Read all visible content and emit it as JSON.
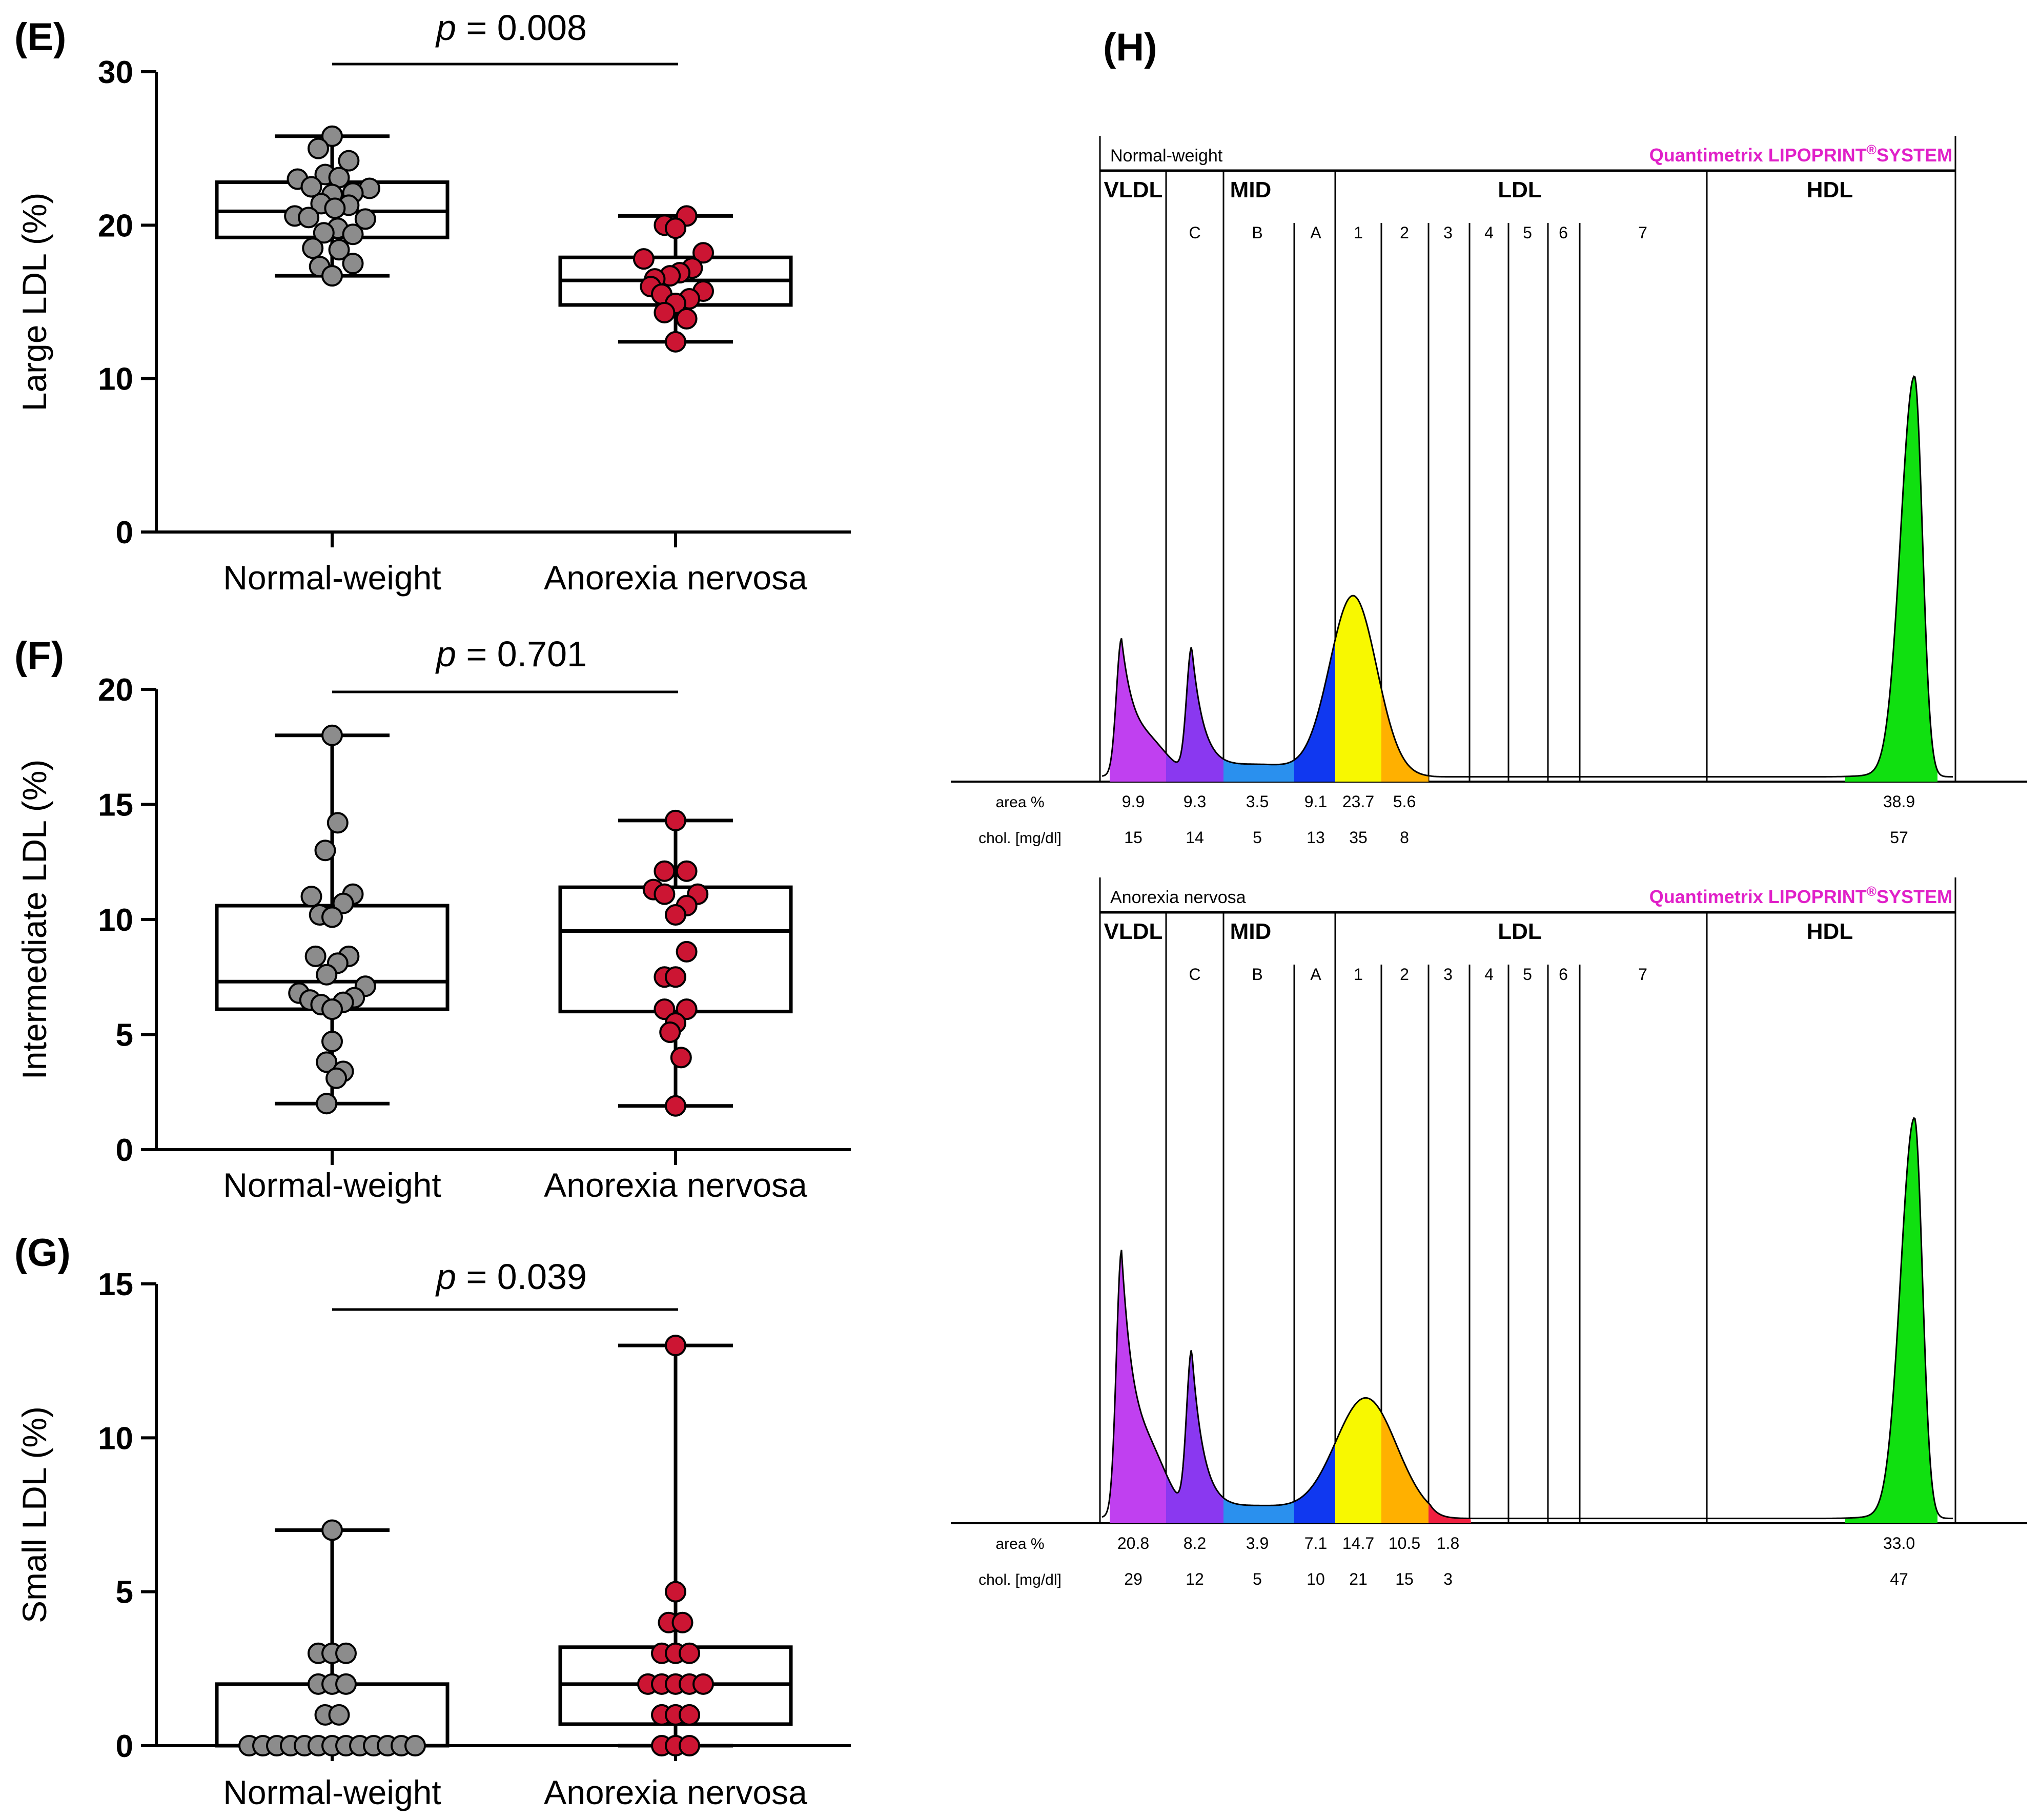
{
  "colors": {
    "normal_fill": "#8c8c8c",
    "anorexia_fill": "#cc1533",
    "axis": "#000000",
    "quantimetrix": "#e020c8",
    "vldl": "#c040f0",
    "mid_c": "#8a38f0",
    "mid_b": "#2a90ee",
    "mid_a": "#1038f0",
    "ldl1": "#f8f800",
    "ldl2": "#ffb000",
    "ldl3": "#f02040",
    "hdl": "#10e010"
  },
  "chart_data": [
    {
      "type": "box",
      "panel_label": "(E)",
      "ylabel": "Large LDL (%)",
      "ylim": [
        0,
        30
      ],
      "yticks": [
        "0",
        "10",
        "20",
        "30"
      ],
      "categories": [
        "Normal-weight",
        "Anorexia nervosa"
      ],
      "pvalue": {
        "label": "p",
        "text": " = 0.008"
      },
      "groups": [
        {
          "name": "Normal-weight",
          "whisker_low": 16.7,
          "q1": 19.2,
          "median": 20.9,
          "q3": 22.8,
          "whisker_high": 25.8,
          "points": [
            {
              "v": 25.8,
              "j": 0
            },
            {
              "v": 25.0,
              "j": -1
            },
            {
              "v": 24.2,
              "j": 1.2
            },
            {
              "v": 23.3,
              "j": -0.5
            },
            {
              "v": 23.1,
              "j": 0.5
            },
            {
              "v": 23.0,
              "j": -2.5
            },
            {
              "v": 22.5,
              "j": -1.5
            },
            {
              "v": 22.4,
              "j": 2.7
            },
            {
              "v": 22.1,
              "j": 1.5
            },
            {
              "v": 22.0,
              "j": 0
            },
            {
              "v": 21.4,
              "j": -0.8
            },
            {
              "v": 21.3,
              "j": 1.2
            },
            {
              "v": 21.1,
              "j": 0.2
            },
            {
              "v": 20.6,
              "j": -2.7
            },
            {
              "v": 20.5,
              "j": -1.7
            },
            {
              "v": 20.4,
              "j": 2.4
            },
            {
              "v": 19.8,
              "j": 0.4
            },
            {
              "v": 19.5,
              "j": -0.6
            },
            {
              "v": 19.4,
              "j": 1.5
            },
            {
              "v": 18.5,
              "j": -1.4
            },
            {
              "v": 18.4,
              "j": 0.5
            },
            {
              "v": 17.5,
              "j": 1.5
            },
            {
              "v": 17.3,
              "j": -0.9
            },
            {
              "v": 16.7,
              "j": 0
            }
          ]
        },
        {
          "name": "Anorexia nervosa",
          "whisker_low": 12.4,
          "q1": 14.8,
          "median": 16.4,
          "q3": 17.9,
          "whisker_high": 20.6,
          "points": [
            {
              "v": 20.6,
              "j": 0.8
            },
            {
              "v": 20.0,
              "j": -0.8
            },
            {
              "v": 19.8,
              "j": 0
            },
            {
              "v": 18.2,
              "j": 2.0
            },
            {
              "v": 17.8,
              "j": -2.3
            },
            {
              "v": 17.2,
              "j": 1.2
            },
            {
              "v": 16.9,
              "j": 0.3
            },
            {
              "v": 16.7,
              "j": -0.4
            },
            {
              "v": 16.5,
              "j": -1.5
            },
            {
              "v": 16.0,
              "j": -1.8
            },
            {
              "v": 15.7,
              "j": 2.0
            },
            {
              "v": 15.5,
              "j": -1.0
            },
            {
              "v": 15.2,
              "j": 1.0
            },
            {
              "v": 14.9,
              "j": 0
            },
            {
              "v": 14.3,
              "j": -0.8
            },
            {
              "v": 13.9,
              "j": 0.8
            },
            {
              "v": 12.4,
              "j": 0
            }
          ]
        }
      ]
    },
    {
      "type": "box",
      "panel_label": "(F)",
      "ylabel": "Intermediate LDL (%)",
      "ylim": [
        0,
        20
      ],
      "yticks": [
        "0",
        "5",
        "10",
        "15",
        "20"
      ],
      "categories": [
        "Normal-weight",
        "Anorexia nervosa"
      ],
      "pvalue": {
        "label": "p",
        "text": " = 0.701"
      },
      "groups": [
        {
          "name": "Normal-weight",
          "whisker_low": 2.0,
          "q1": 6.1,
          "median": 7.3,
          "q3": 10.6,
          "whisker_high": 18.0,
          "points": [
            {
              "v": 18.0,
              "j": 0
            },
            {
              "v": 14.2,
              "j": 0.4
            },
            {
              "v": 13.0,
              "j": -0.5
            },
            {
              "v": 11.1,
              "j": 1.5
            },
            {
              "v": 11.0,
              "j": -1.5
            },
            {
              "v": 10.7,
              "j": 0.8
            },
            {
              "v": 10.2,
              "j": -0.9
            },
            {
              "v": 10.1,
              "j": 0
            },
            {
              "v": 8.4,
              "j": 1.2
            },
            {
              "v": 8.4,
              "j": -1.2
            },
            {
              "v": 8.1,
              "j": 0.4
            },
            {
              "v": 7.6,
              "j": -0.4
            },
            {
              "v": 7.1,
              "j": 2.4
            },
            {
              "v": 6.8,
              "j": -2.4
            },
            {
              "v": 6.6,
              "j": 1.6
            },
            {
              "v": 6.5,
              "j": -1.6
            },
            {
              "v": 6.4,
              "j": 0.8
            },
            {
              "v": 6.3,
              "j": -0.8
            },
            {
              "v": 6.1,
              "j": 0
            },
            {
              "v": 4.7,
              "j": 0
            },
            {
              "v": 3.8,
              "j": -0.4
            },
            {
              "v": 3.4,
              "j": 0.8
            },
            {
              "v": 3.1,
              "j": 0.3
            },
            {
              "v": 2.0,
              "j": -0.4
            }
          ]
        },
        {
          "name": "Anorexia nervosa",
          "whisker_low": 1.9,
          "q1": 6.0,
          "median": 9.5,
          "q3": 11.4,
          "whisker_high": 14.3,
          "points": [
            {
              "v": 14.3,
              "j": 0
            },
            {
              "v": 12.1,
              "j": -0.8
            },
            {
              "v": 12.1,
              "j": 0.8
            },
            {
              "v": 11.3,
              "j": -1.6
            },
            {
              "v": 11.1,
              "j": 1.6
            },
            {
              "v": 11.1,
              "j": -0.8
            },
            {
              "v": 10.6,
              "j": 0.8
            },
            {
              "v": 10.2,
              "j": 0
            },
            {
              "v": 8.6,
              "j": 0.8
            },
            {
              "v": 7.5,
              "j": -0.8
            },
            {
              "v": 7.5,
              "j": 0
            },
            {
              "v": 6.1,
              "j": -0.8
            },
            {
              "v": 6.1,
              "j": 0.8
            },
            {
              "v": 5.5,
              "j": 0
            },
            {
              "v": 5.1,
              "j": -0.4
            },
            {
              "v": 4.0,
              "j": 0.4
            },
            {
              "v": 1.9,
              "j": 0
            }
          ]
        }
      ]
    },
    {
      "type": "box",
      "panel_label": "(G)",
      "ylabel": "Small LDL (%)",
      "ylim": [
        0,
        15
      ],
      "yticks": [
        "0",
        "5",
        "10",
        "15"
      ],
      "categories": [
        "Normal-weight",
        "Anorexia nervosa"
      ],
      "pvalue": {
        "label": "p",
        "text": " = 0.039"
      },
      "groups": [
        {
          "name": "Normal-weight",
          "whisker_low": 0,
          "q1": 0,
          "median": 0,
          "q3": 2.0,
          "whisker_high": 7.0,
          "points": [
            {
              "v": 7,
              "j": 0
            },
            {
              "v": 3,
              "j": -1
            },
            {
              "v": 3,
              "j": 0
            },
            {
              "v": 3,
              "j": 1
            },
            {
              "v": 2,
              "j": -1
            },
            {
              "v": 2,
              "j": 0
            },
            {
              "v": 2,
              "j": 1
            },
            {
              "v": 1,
              "j": -0.5
            },
            {
              "v": 1,
              "j": 0.5
            },
            {
              "v": 0,
              "j": -6
            },
            {
              "v": 0,
              "j": -5
            },
            {
              "v": 0,
              "j": -4
            },
            {
              "v": 0,
              "j": -3
            },
            {
              "v": 0,
              "j": -2
            },
            {
              "v": 0,
              "j": -1
            },
            {
              "v": 0,
              "j": 0
            },
            {
              "v": 0,
              "j": 1
            },
            {
              "v": 0,
              "j": 2
            },
            {
              "v": 0,
              "j": 3
            },
            {
              "v": 0,
              "j": 4
            },
            {
              "v": 0,
              "j": 5
            },
            {
              "v": 0,
              "j": 6
            }
          ]
        },
        {
          "name": "Anorexia nervosa",
          "whisker_low": 0,
          "q1": 0.7,
          "median": 2.0,
          "q3": 3.2,
          "whisker_high": 13.0,
          "points": [
            {
              "v": 13,
              "j": 0
            },
            {
              "v": 5,
              "j": 0
            },
            {
              "v": 4,
              "j": -0.5
            },
            {
              "v": 4,
              "j": 0.5
            },
            {
              "v": 3,
              "j": -1
            },
            {
              "v": 3,
              "j": 0
            },
            {
              "v": 3,
              "j": 1
            },
            {
              "v": 2,
              "j": -2
            },
            {
              "v": 2,
              "j": -1
            },
            {
              "v": 2,
              "j": 0
            },
            {
              "v": 2,
              "j": 1
            },
            {
              "v": 2,
              "j": 2
            },
            {
              "v": 1,
              "j": -1
            },
            {
              "v": 1,
              "j": 0
            },
            {
              "v": 1,
              "j": 1
            },
            {
              "v": 0,
              "j": -1
            },
            {
              "v": 0,
              "j": 0
            },
            {
              "v": 0,
              "j": 1
            }
          ]
        }
      ]
    }
  ],
  "panel_h": {
    "label": "(H)",
    "brand": "Quantimetrix LIPOPRINT",
    "brand_mark": "®",
    "brand_suffix": "SYSTEM",
    "fraction_headers": [
      "VLDL",
      "MID",
      "LDL",
      "HDL"
    ],
    "subfraction_labels": [
      "C",
      "B",
      "A",
      "1",
      "2",
      "3",
      "4",
      "5",
      "6",
      "7"
    ],
    "row_label_area": "area %",
    "row_label_chol": "chol. [mg/dl]",
    "profiles": [
      {
        "name": "Normal-weight",
        "area_values": [
          "9.9",
          "9.3",
          "3.5",
          "9.1",
          "23.7",
          "5.6",
          "38.9"
        ],
        "chol_values": [
          "15",
          "14",
          "5",
          "13",
          "35",
          "8",
          "57"
        ],
        "peaks": {
          "vldl": 0.33,
          "mid_c": 0.31,
          "ldl1": 0.45,
          "hdl": 1.0
        }
      },
      {
        "name": "Anorexia nervosa",
        "area_values": [
          "20.8",
          "8.2",
          "3.9",
          "7.1",
          "14.7",
          "10.5",
          "1.8",
          "33.0"
        ],
        "chol_values": [
          "29",
          "12",
          "5",
          "10",
          "21",
          "15",
          "3",
          "47"
        ],
        "peaks": {
          "vldl": 0.64,
          "mid_c": 0.4,
          "ldl1": 0.3,
          "hdl": 1.0
        }
      }
    ]
  }
}
